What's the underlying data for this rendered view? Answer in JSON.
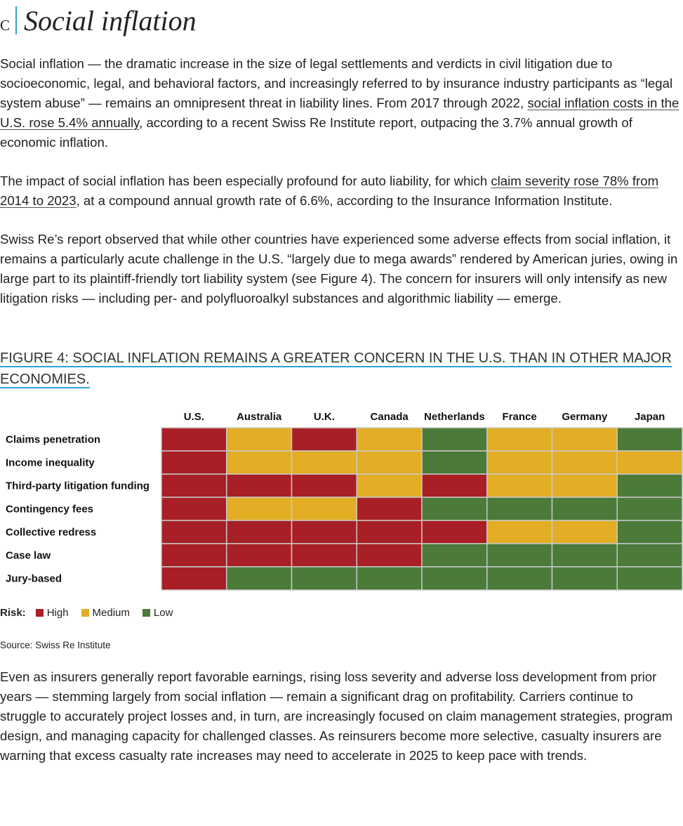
{
  "header": {
    "letter": "C",
    "title": "Social inflation"
  },
  "paragraphs": [
    {
      "before": "Social inflation — the dramatic increase in the size of legal settlements and verdicts in civil litigation due to socioeconomic, legal, and behavioral factors, and increasingly referred to by insurance industry participants as “legal system abuse” — remains an omnipresent threat in liability lines. From 2017 through 2022, ",
      "link": "social inflation costs in the U.S. rose 5.4% annually",
      "after": ", according to a recent Swiss Re Institute report, outpacing the 3.7% annual growth of economic inflation."
    },
    {
      "before": "The impact of social inflation has been especially profound for auto liability, for which ",
      "link": "claim severity rose 78% from 2014 to 2023",
      "after": ", at a compound annual growth rate of 6.6%, according to the Insurance Information Institute."
    },
    {
      "text": "Swiss Re’s report observed that while other countries have experienced some adverse effects from social inflation, it remains a particularly acute challenge in the U.S. “largely due to mega awards” rendered by American juries, owing in large part to its plaintiff-friendly tort liability system (see Figure 4). The concern for insurers will only intensify as new litigation risks — including per- and polyfluoroalkyl substances and algorithmic liability — emerge."
    }
  ],
  "figure": {
    "title": "FIGURE 4: SOCIAL INFLATION REMAINS A GREATER CONCERN IN THE U.S. THAN IN OTHER MAJOR ECONOMIES.",
    "columns": [
      "U.S.",
      "Australia",
      "U.K.",
      "Canada",
      "Netherlands",
      "France",
      "Germany",
      "Japan"
    ],
    "rows": [
      {
        "label": "Claims penetration",
        "cells": [
          "High",
          "Medium",
          "High",
          "Medium",
          "Low",
          "Medium",
          "Medium",
          "Low"
        ]
      },
      {
        "label": "Income inequality",
        "cells": [
          "High",
          "Medium",
          "Medium",
          "Medium",
          "Low",
          "Medium",
          "Medium",
          "Medium"
        ]
      },
      {
        "label": "Third-party litigation funding",
        "cells": [
          "High",
          "High",
          "High",
          "Medium",
          "High",
          "Medium",
          "Medium",
          "Low"
        ]
      },
      {
        "label": "Contingency fees",
        "cells": [
          "High",
          "Medium",
          "Medium",
          "High",
          "Low",
          "Low",
          "Low",
          "Low"
        ]
      },
      {
        "label": "Collective redress",
        "cells": [
          "High",
          "High",
          "High",
          "High",
          "High",
          "Medium",
          "Medium",
          "Low"
        ]
      },
      {
        "label": "Case law",
        "cells": [
          "High",
          "High",
          "High",
          "High",
          "Low",
          "Low",
          "Low",
          "Low"
        ]
      },
      {
        "label": "Jury-based",
        "cells": [
          "High",
          "Low",
          "Low",
          "Low",
          "Low",
          "Low",
          "Low",
          "Low"
        ]
      }
    ],
    "legend": {
      "title": "Risk:",
      "items": [
        {
          "label": "High",
          "color": "#a81f25"
        },
        {
          "label": "Medium",
          "color": "#e3ae25"
        },
        {
          "label": "Low",
          "color": "#4b7a39"
        }
      ]
    },
    "source": "Source: Swiss Re Institute"
  },
  "closing": "Even as insurers generally report favorable earnings, rising loss severity and adverse loss development from prior years — stemming largely from social inflation — remain a significant drag on profitability. Carriers continue to struggle to accurately project losses and, in turn, are increasingly focused on claim management strategies, program design, and managing capacity for challenged classes. As reinsurers become more selective, casualty insurers are warning that excess casualty rate increases may need to accelerate in 2025 to keep pace with trends."
}
